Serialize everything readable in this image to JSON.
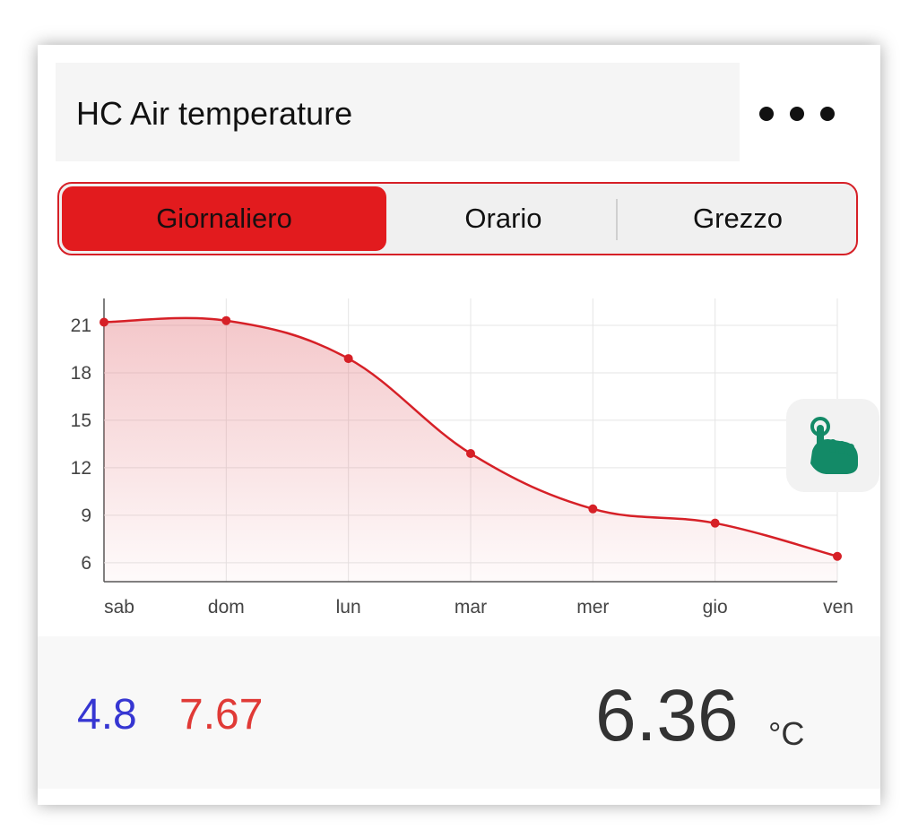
{
  "header": {
    "title": "HC Air temperature",
    "menu_icon": "more-dots-icon"
  },
  "tabs": [
    {
      "label": "Giornaliero",
      "active": true
    },
    {
      "label": "Orario",
      "active": false
    },
    {
      "label": "Grezzo",
      "active": false
    }
  ],
  "colors": {
    "accent": "#e21b1e",
    "line": "#d62027",
    "min": "#3636d2",
    "max": "#e03a36",
    "touch_icon": "#138a67"
  },
  "chart_data": {
    "type": "area",
    "categories": [
      "sab",
      "dom",
      "lun",
      "mar",
      "mer",
      "gio",
      "ven"
    ],
    "values": [
      21.2,
      21.3,
      18.9,
      12.9,
      9.4,
      8.5,
      6.4
    ],
    "yticks": [
      6,
      9,
      12,
      15,
      18,
      21
    ],
    "ylim": [
      4.8,
      22.7
    ],
    "grid": true,
    "legend": "none"
  },
  "touch_hint": {
    "icon": "tap-hand-icon"
  },
  "summary": {
    "min": "4.8",
    "max": "7.67",
    "current": "6.36",
    "unit": "°C"
  }
}
